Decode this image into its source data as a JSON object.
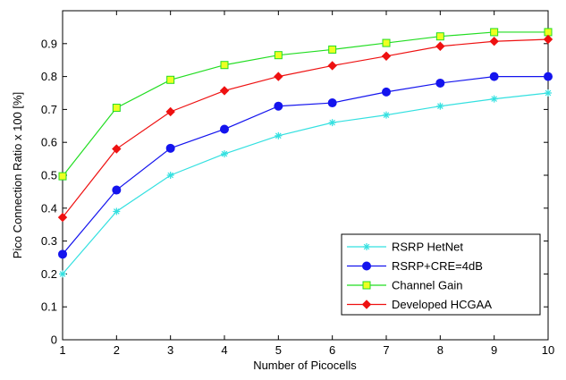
{
  "chart_data": {
    "type": "line",
    "title": "",
    "xlabel": "Number of Picocells",
    "ylabel": "Pico Connection Ratio x 100 [%]",
    "x": [
      1,
      2,
      3,
      4,
      5,
      6,
      7,
      8,
      9,
      10
    ],
    "xlim": [
      1,
      10
    ],
    "ylim": [
      0,
      1
    ],
    "xticks": [
      1,
      2,
      3,
      4,
      5,
      6,
      7,
      8,
      9,
      10
    ],
    "yticks": [
      0,
      0.1,
      0.2,
      0.3,
      0.4,
      0.5,
      0.6,
      0.7,
      0.8,
      0.9
    ],
    "ytick_labels": [
      "0",
      "0.1",
      "0.2",
      "0.3",
      "0.4",
      "0.5",
      "0.6",
      "0.7",
      "0.8",
      "0.9"
    ],
    "grid": false,
    "legend_position": "lower-right",
    "series": [
      {
        "name": "RSRP HetNet",
        "color": "#33e0e0",
        "marker": "asterisk",
        "values": [
          0.2,
          0.39,
          0.5,
          0.565,
          0.62,
          0.66,
          0.683,
          0.71,
          0.732,
          0.75
        ]
      },
      {
        "name": "RSRP+CRE=4dB",
        "color": "#1414ee",
        "marker": "circle",
        "values": [
          0.26,
          0.455,
          0.582,
          0.64,
          0.71,
          0.72,
          0.753,
          0.78,
          0.8,
          0.8
        ]
      },
      {
        "name": "Channel Gain",
        "color": "#22dd22",
        "marker": "square",
        "marker_fill": "#eeff22",
        "values": [
          0.497,
          0.705,
          0.79,
          0.835,
          0.865,
          0.882,
          0.902,
          0.922,
          0.935,
          0.935
        ]
      },
      {
        "name": "Developed HCGAA",
        "color": "#ee1111",
        "marker": "diamond",
        "values": [
          0.372,
          0.58,
          0.693,
          0.757,
          0.8,
          0.833,
          0.862,
          0.892,
          0.907,
          0.913
        ]
      }
    ]
  }
}
